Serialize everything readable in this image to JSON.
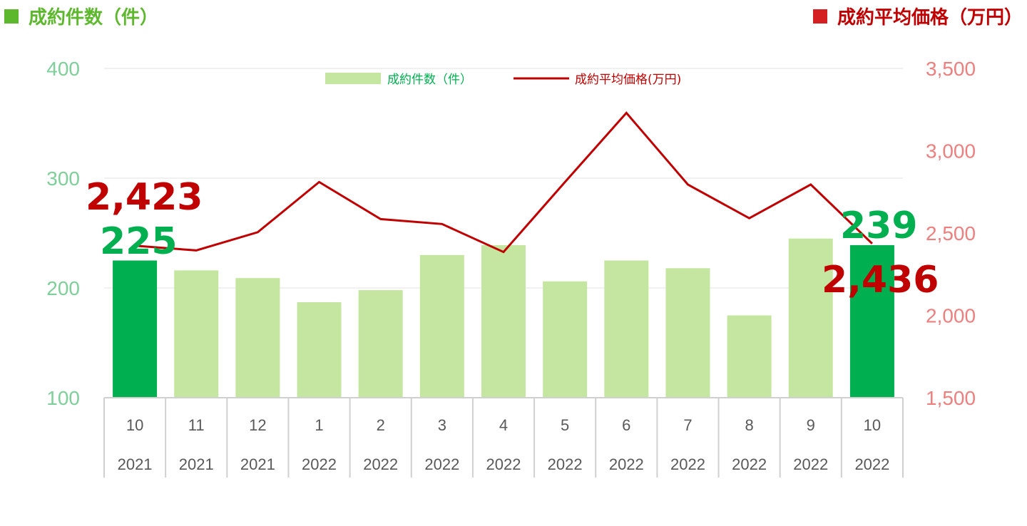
{
  "header": {
    "left_title": "成約件数（件）",
    "right_title": "成約平均価格（万円）"
  },
  "colors": {
    "bar_highlight": "#00b050",
    "bar_normal": "#c5e6a0",
    "line": "#c00000",
    "left_axis_text": "#7fcf9a",
    "right_axis_text": "#ee7f7f",
    "callout_count": "#00b050",
    "callout_price": "#c00000"
  },
  "chart_data": {
    "type": "bar",
    "categories": [
      {
        "month": "10",
        "year": "2021"
      },
      {
        "month": "11",
        "year": "2021"
      },
      {
        "month": "12",
        "year": "2021"
      },
      {
        "month": "1",
        "year": "2022"
      },
      {
        "month": "2",
        "year": "2022"
      },
      {
        "month": "3",
        "year": "2022"
      },
      {
        "month": "4",
        "year": "2022"
      },
      {
        "month": "5",
        "year": "2022"
      },
      {
        "month": "6",
        "year": "2022"
      },
      {
        "month": "7",
        "year": "2022"
      },
      {
        "month": "8",
        "year": "2022"
      },
      {
        "month": "9",
        "year": "2022"
      },
      {
        "month": "10",
        "year": "2022"
      }
    ],
    "series": [
      {
        "name": "成約件数（件）",
        "type": "bar",
        "axis": "left",
        "values": [
          225,
          216,
          209,
          187,
          198,
          230,
          239,
          206,
          225,
          218,
          175,
          245,
          239
        ],
        "highlight": [
          true,
          false,
          false,
          false,
          false,
          false,
          false,
          false,
          false,
          false,
          false,
          false,
          true
        ]
      },
      {
        "name": "成約平均価格(万円)",
        "type": "line",
        "axis": "right",
        "values": [
          2423,
          2395,
          2505,
          2810,
          2585,
          2555,
          2385,
          2810,
          3230,
          2795,
          2590,
          2795,
          2436
        ]
      }
    ],
    "y_left": {
      "min": 100,
      "max": 400,
      "ticks": [
        "100",
        "200",
        "300",
        "400"
      ]
    },
    "y_right": {
      "min": 1500,
      "max": 3500,
      "ticks": [
        "1,500",
        "2,000",
        "2,500",
        "3,000",
        "3,500"
      ]
    },
    "gridlines": true,
    "legend_position": "top-center",
    "callouts": {
      "first_price": "2,423",
      "first_count": "225",
      "last_count": "239",
      "last_price": "2,436"
    }
  }
}
